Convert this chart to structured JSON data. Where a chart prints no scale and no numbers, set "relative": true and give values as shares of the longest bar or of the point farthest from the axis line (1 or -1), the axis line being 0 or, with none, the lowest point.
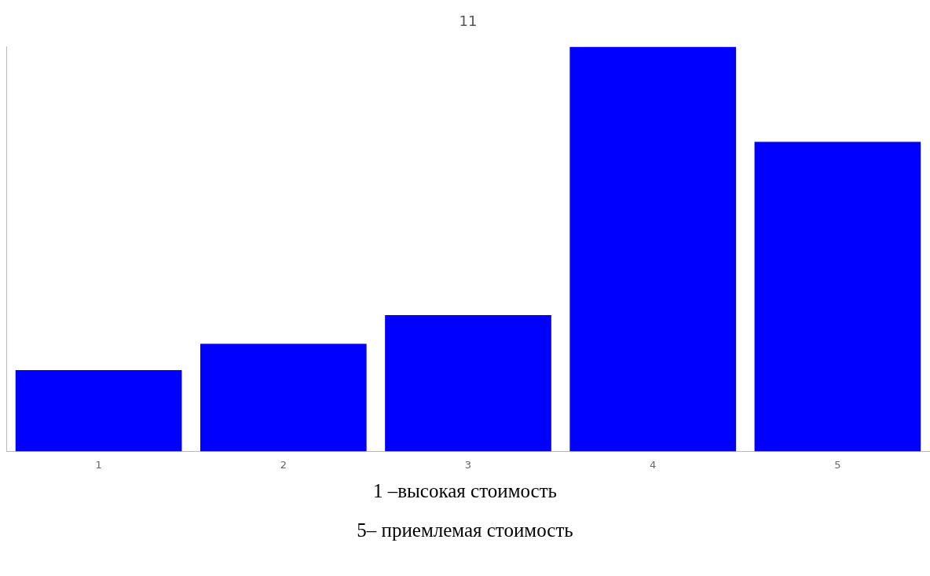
{
  "chart_data": {
    "type": "bar",
    "title": "11",
    "categories": [
      "1",
      "2",
      "3",
      "4",
      "5"
    ],
    "values": [
      0.201,
      0.266,
      0.337,
      1,
      0.765
    ],
    "color": "#0000ff",
    "relative": true,
    "grid": false,
    "legend": false,
    "annotations": [
      "1 –высокая стоимость",
      "5– приемлемая стоимость"
    ]
  }
}
